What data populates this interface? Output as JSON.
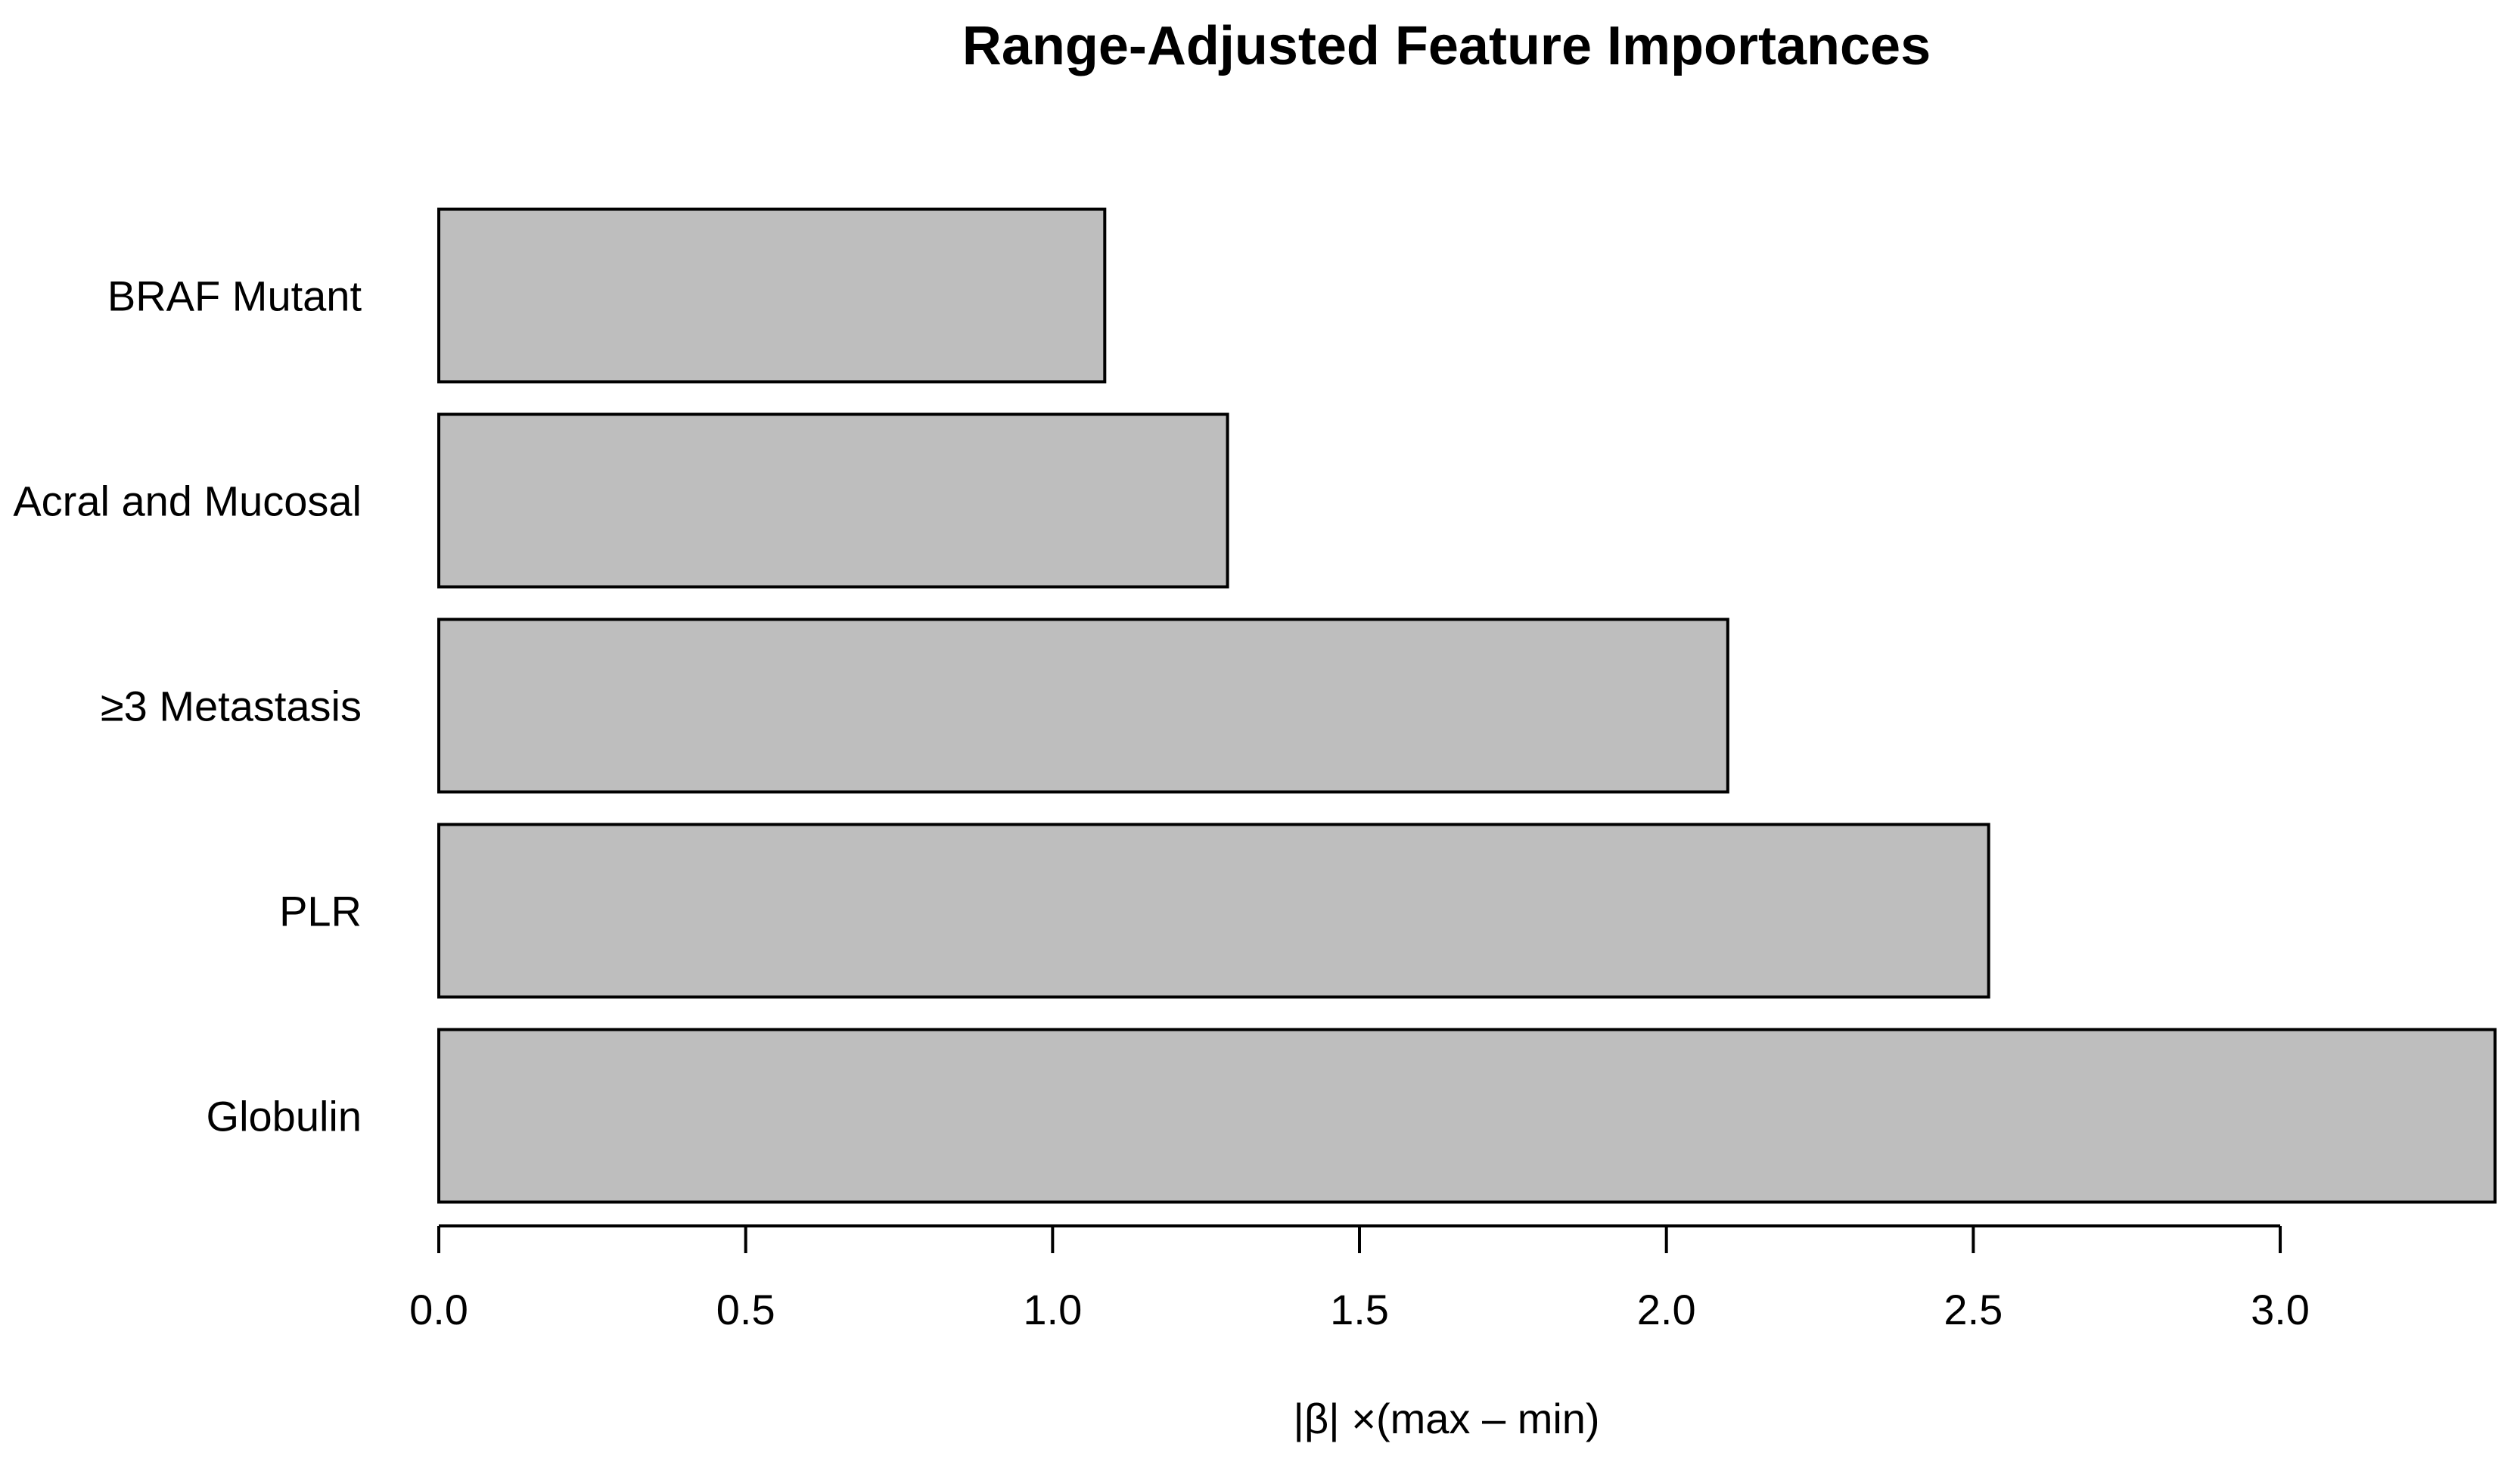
{
  "chart_data": {
    "type": "bar",
    "orientation": "horizontal",
    "title": "Range-Adjusted Feature Importances",
    "xlabel": "|β| ×(max – min)",
    "ylabel": "",
    "categories": [
      "BRAF Mutant",
      "Acral and Mucosal",
      "≥3 Metastasis",
      "PLR",
      "Globulin"
    ],
    "values": [
      1.085,
      1.285,
      2.1,
      2.525,
      3.35
    ],
    "xlim": [
      0,
      3.35
    ],
    "x_ticks": [
      0.0,
      0.5,
      1.0,
      1.5,
      2.0,
      2.5,
      3.0
    ],
    "x_tick_labels": [
      "0.0",
      "0.5",
      "1.0",
      "1.5",
      "2.0",
      "2.5",
      "3.0"
    ],
    "grid": false,
    "legend": "none",
    "colors": {
      "bar_fill": "#bebebe",
      "bar_stroke": "#000000",
      "text": "#000000",
      "background": "#ffffff"
    }
  }
}
